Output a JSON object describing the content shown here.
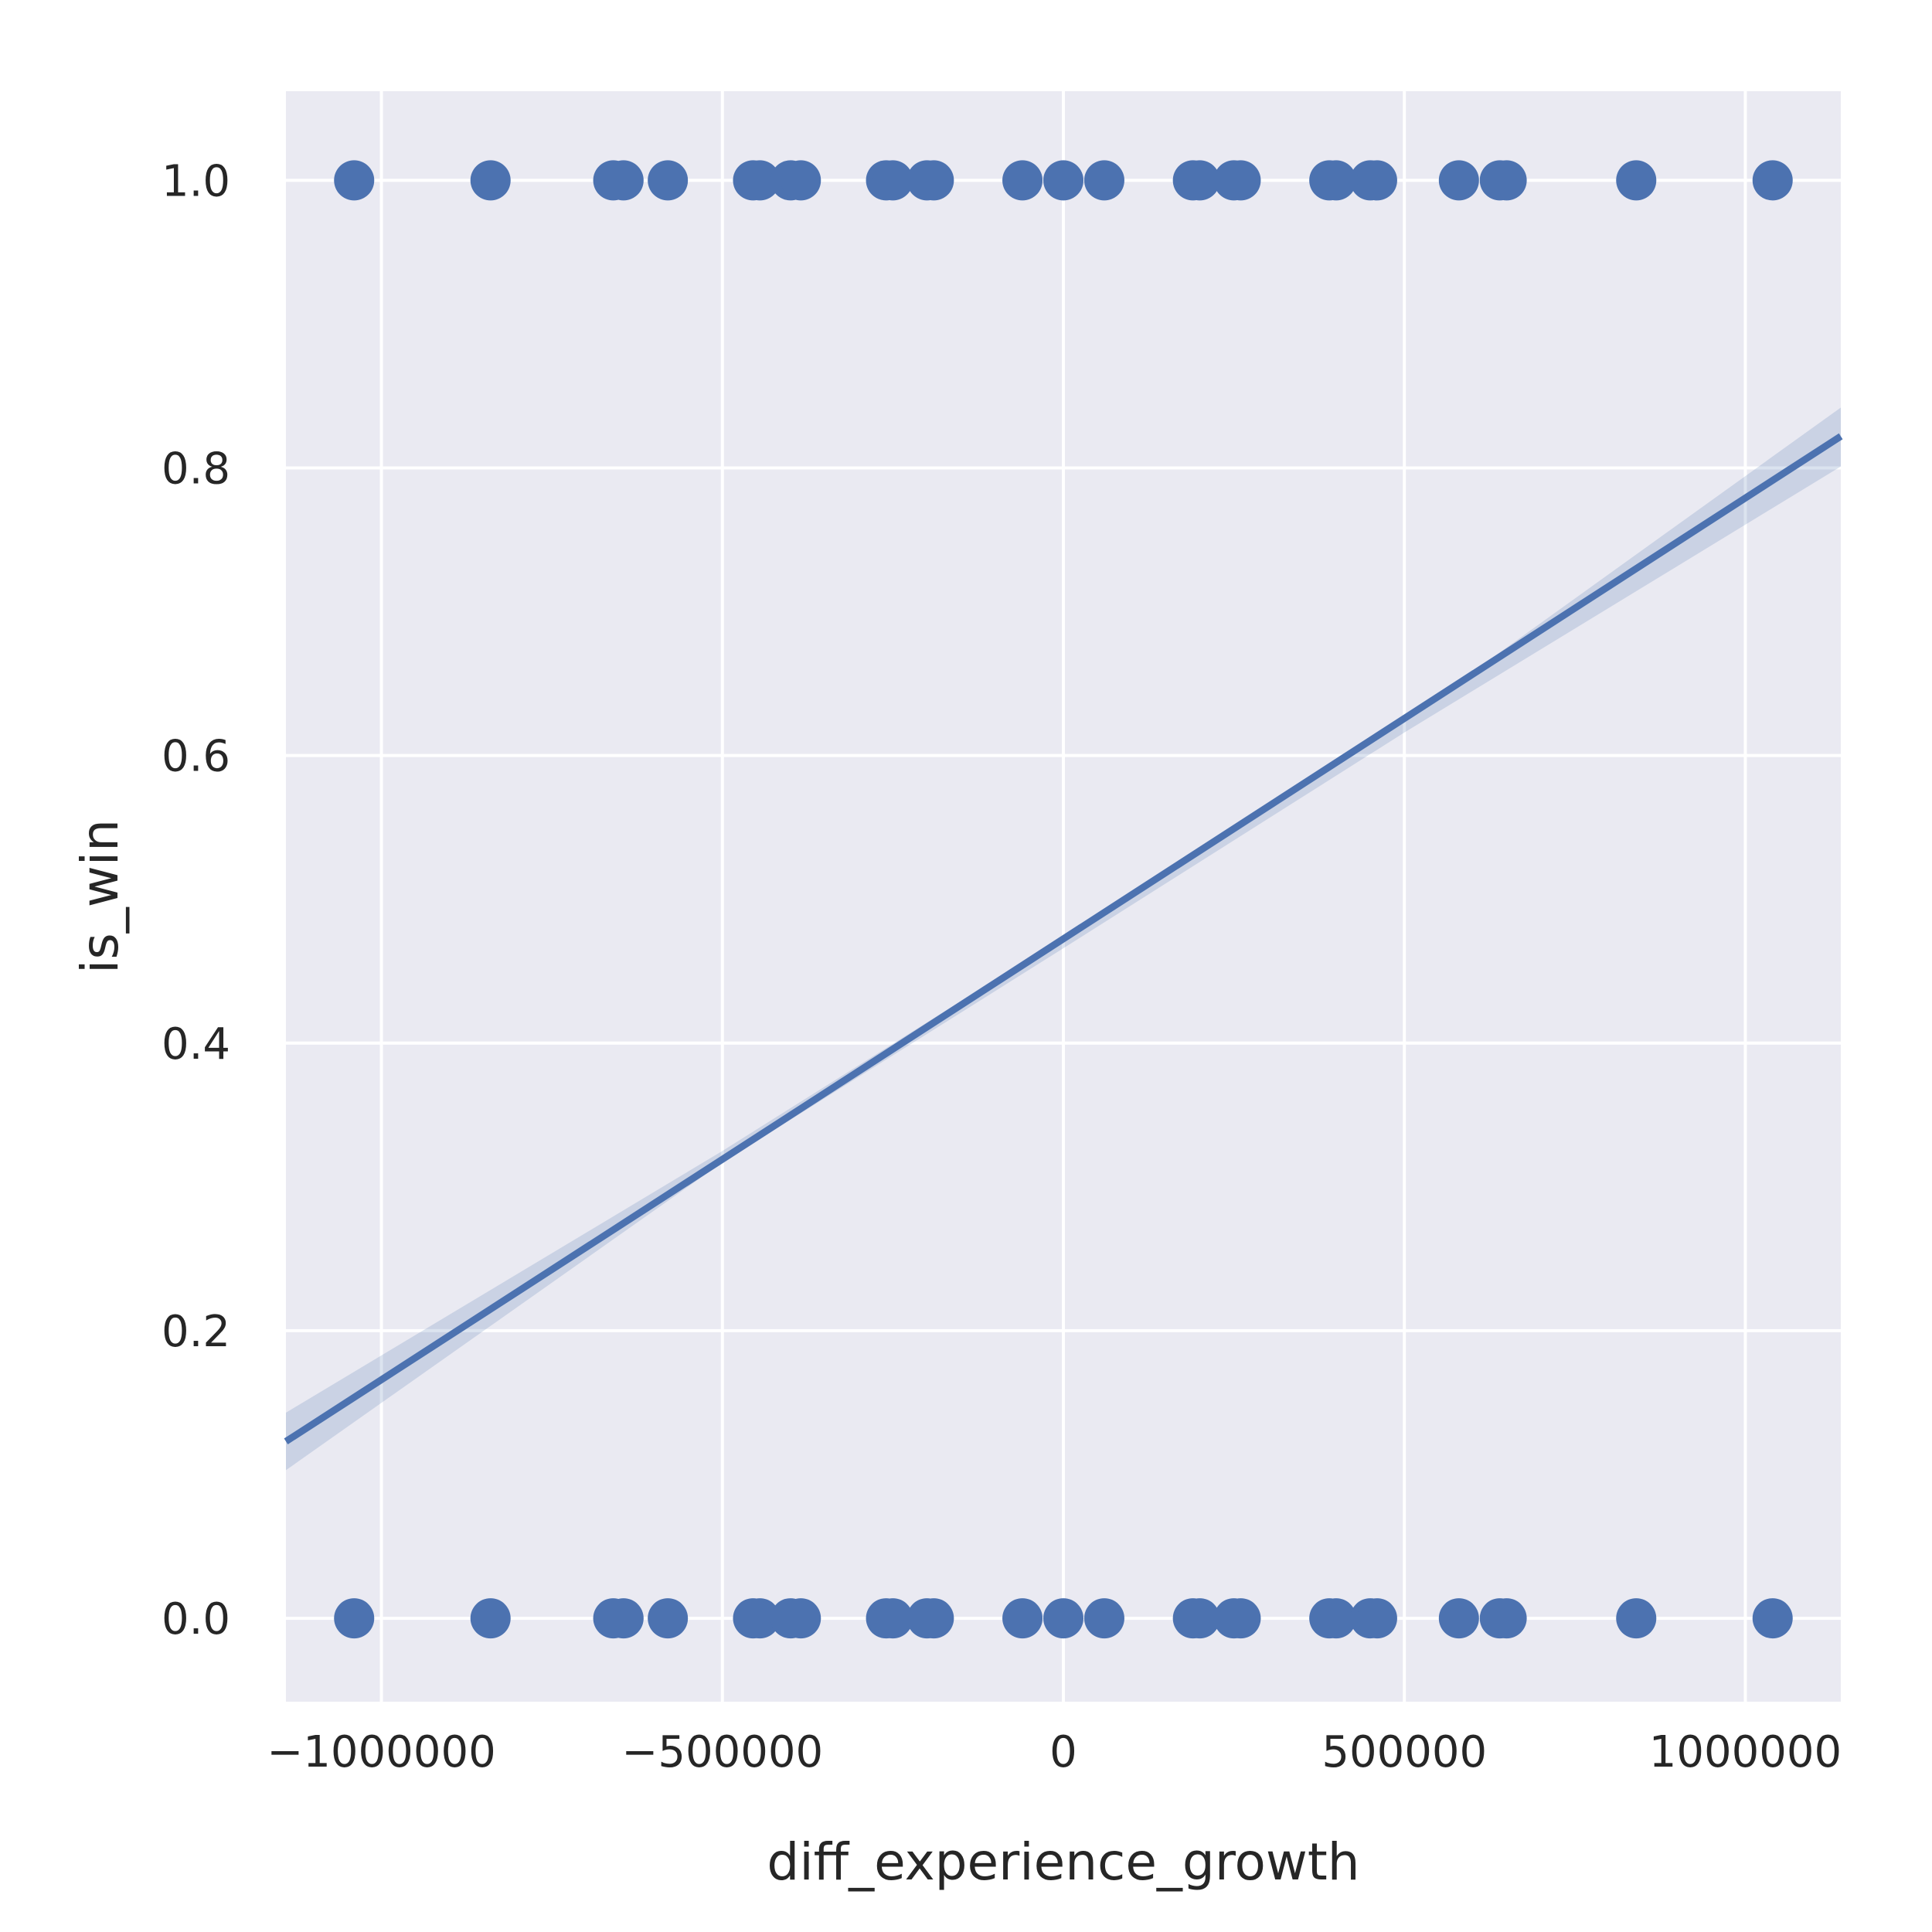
{
  "chart_data": {
    "type": "scatter",
    "title": "",
    "xlabel": "diff_experience_growth",
    "ylabel": "is_win",
    "xlim": [
      -1140000,
      1140000
    ],
    "ylim": [
      -0.058,
      1.062
    ],
    "x_ticks": [
      -1000000,
      -500000,
      0,
      500000,
      1000000
    ],
    "x_tick_labels": [
      "−1000000",
      "−500000",
      "0",
      "500000",
      "1000000"
    ],
    "y_ticks": [
      0.0,
      0.2,
      0.4,
      0.6,
      0.8,
      1.0
    ],
    "y_tick_labels": [
      "0.0",
      "0.2",
      "0.4",
      "0.6",
      "0.8",
      "1.0"
    ],
    "grid": true,
    "background_color": "#eaeaf2",
    "grid_color": "#ffffff",
    "series": [
      {
        "color": "#4c72b0",
        "points": [
          {
            "x": -1040000,
            "y": 1
          },
          {
            "x": -840000,
            "y": 1
          },
          {
            "x": -660000,
            "y": 1
          },
          {
            "x": -645000,
            "y": 1
          },
          {
            "x": -580000,
            "y": 1
          },
          {
            "x": -455000,
            "y": 1
          },
          {
            "x": -445000,
            "y": 1
          },
          {
            "x": -400000,
            "y": 1
          },
          {
            "x": -385000,
            "y": 1
          },
          {
            "x": -260000,
            "y": 1
          },
          {
            "x": -250000,
            "y": 1
          },
          {
            "x": -200000,
            "y": 1
          },
          {
            "x": -190000,
            "y": 1
          },
          {
            "x": -60000,
            "y": 1
          },
          {
            "x": 0,
            "y": 1
          },
          {
            "x": 60000,
            "y": 1
          },
          {
            "x": 190000,
            "y": 1
          },
          {
            "x": 200000,
            "y": 1
          },
          {
            "x": 250000,
            "y": 1
          },
          {
            "x": 260000,
            "y": 1
          },
          {
            "x": 390000,
            "y": 1
          },
          {
            "x": 400000,
            "y": 1
          },
          {
            "x": 450000,
            "y": 1
          },
          {
            "x": 460000,
            "y": 1
          },
          {
            "x": 580000,
            "y": 1
          },
          {
            "x": 640000,
            "y": 1
          },
          {
            "x": 650000,
            "y": 1
          },
          {
            "x": 840000,
            "y": 1
          },
          {
            "x": 1040000,
            "y": 1
          },
          {
            "x": -1040000,
            "y": 0
          },
          {
            "x": -840000,
            "y": 0
          },
          {
            "x": -660000,
            "y": 0
          },
          {
            "x": -645000,
            "y": 0
          },
          {
            "x": -580000,
            "y": 0
          },
          {
            "x": -455000,
            "y": 0
          },
          {
            "x": -445000,
            "y": 0
          },
          {
            "x": -400000,
            "y": 0
          },
          {
            "x": -385000,
            "y": 0
          },
          {
            "x": -260000,
            "y": 0
          },
          {
            "x": -250000,
            "y": 0
          },
          {
            "x": -200000,
            "y": 0
          },
          {
            "x": -190000,
            "y": 0
          },
          {
            "x": -60000,
            "y": 0
          },
          {
            "x": 0,
            "y": 0
          },
          {
            "x": 60000,
            "y": 0
          },
          {
            "x": 190000,
            "y": 0
          },
          {
            "x": 200000,
            "y": 0
          },
          {
            "x": 250000,
            "y": 0
          },
          {
            "x": 260000,
            "y": 0
          },
          {
            "x": 390000,
            "y": 0
          },
          {
            "x": 400000,
            "y": 0
          },
          {
            "x": 450000,
            "y": 0
          },
          {
            "x": 460000,
            "y": 0
          },
          {
            "x": 580000,
            "y": 0
          },
          {
            "x": 640000,
            "y": 0
          },
          {
            "x": 650000,
            "y": 0
          },
          {
            "x": 840000,
            "y": 0
          },
          {
            "x": 1040000,
            "y": 0
          }
        ]
      }
    ],
    "regression": {
      "color": "#4c72b0",
      "ci_color": "#4c72b0",
      "ci_opacity": 0.2,
      "line": [
        {
          "x": -1140000,
          "y": 0.123
        },
        {
          "x": 1140000,
          "y": 0.822
        }
      ],
      "ci_upper": [
        {
          "x": -1140000,
          "y": 0.143
        },
        {
          "x": -500000,
          "y": 0.325
        },
        {
          "x": 0,
          "y": 0.474
        },
        {
          "x": 500000,
          "y": 0.624
        },
        {
          "x": 1140000,
          "y": 0.842
        }
      ],
      "ci_lower": [
        {
          "x": -1140000,
          "y": 0.103
        },
        {
          "x": -500000,
          "y": 0.317
        },
        {
          "x": 0,
          "y": 0.466
        },
        {
          "x": 500000,
          "y": 0.616
        },
        {
          "x": 1140000,
          "y": 0.801
        }
      ]
    }
  }
}
